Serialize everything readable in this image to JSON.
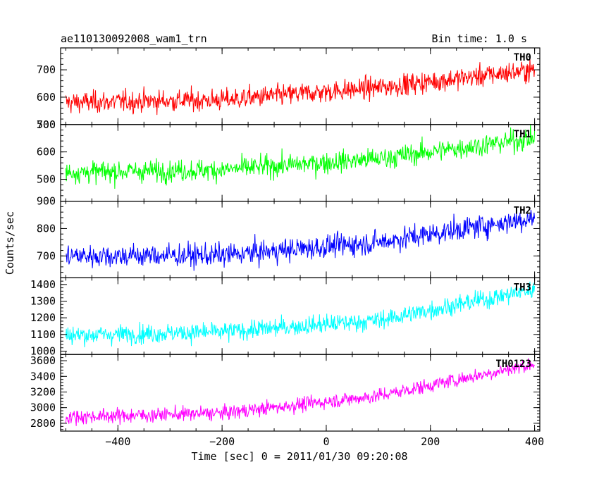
{
  "header": {
    "title": "ae110130092008_wam1_trn",
    "bin_time": "Bin time: 1.0 s"
  },
  "chart_data": {
    "type": "line",
    "xlabel": "Time [sec] 0 = 2011/01/30 09:20:08",
    "ylabel": "Counts/sec",
    "xlim": [
      -510,
      410
    ],
    "x_ticks": [
      -400,
      -200,
      0,
      200,
      400
    ],
    "x_tick_labels": [
      "−400",
      "−200",
      "0",
      "200",
      "400"
    ],
    "x_start": -500,
    "x_end": 400,
    "bin_time_s": 1.0,
    "panels": [
      {
        "name": "TH0",
        "color": "#ff0000",
        "ylim": [
          500,
          780
        ],
        "y_ticks": [
          500,
          600,
          700
        ],
        "y_tick_labels": [
          "500",
          "600",
          "700"
        ],
        "trend": [
          [
            -500,
            580
          ],
          [
            -200,
            590
          ],
          [
            100,
            635
          ],
          [
            400,
            700
          ]
        ],
        "noise": 28
      },
      {
        "name": "TH1",
        "color": "#00ff00",
        "ylim": [
          420,
          700
        ],
        "y_ticks": [
          500,
          600,
          700
        ],
        "y_tick_labels": [
          "500",
          "600",
          "700"
        ],
        "trend": [
          [
            -500,
            525
          ],
          [
            -200,
            535
          ],
          [
            100,
            575
          ],
          [
            400,
            650
          ]
        ],
        "noise": 28
      },
      {
        "name": "TH2",
        "color": "#0000ff",
        "ylim": [
          620,
          900
        ],
        "y_ticks": [
          700,
          800,
          900
        ],
        "y_tick_labels": [
          "700",
          "800",
          "900"
        ],
        "trend": [
          [
            -500,
            700
          ],
          [
            -200,
            702
          ],
          [
            100,
            750
          ],
          [
            400,
            840
          ]
        ],
        "noise": 30
      },
      {
        "name": "TH3",
        "color": "#00ffff",
        "ylim": [
          980,
          1440
        ],
        "y_ticks": [
          1000,
          1100,
          1200,
          1300,
          1400
        ],
        "y_tick_labels": [
          "1000",
          "1100",
          "1200",
          "1300",
          "1400"
        ],
        "trend": [
          [
            -500,
            1095
          ],
          [
            -200,
            1115
          ],
          [
            100,
            1185
          ],
          [
            400,
            1370
          ]
        ],
        "noise": 40
      },
      {
        "name": "TH0123",
        "color": "#ff00ff",
        "ylim": [
          2700,
          3680
        ],
        "y_ticks": [
          2800,
          3000,
          3200,
          3400,
          3600
        ],
        "y_tick_labels": [
          "2800",
          "3000",
          "3200",
          "3400",
          "3600"
        ],
        "trend": [
          [
            -500,
            2880
          ],
          [
            -200,
            2930
          ],
          [
            100,
            3150
          ],
          [
            400,
            3560
          ]
        ],
        "noise": 65
      }
    ]
  }
}
